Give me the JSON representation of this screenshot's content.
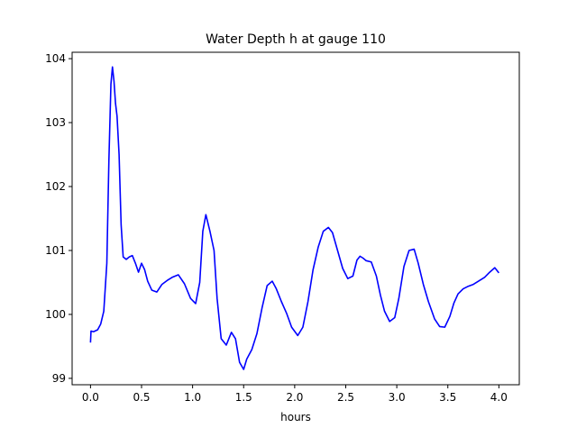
{
  "chart_data": {
    "type": "line",
    "title": "Water Depth h at gauge 110",
    "xlabel": "hours",
    "ylabel": "",
    "xlim": [
      -0.18,
      4.2
    ],
    "ylim": [
      98.9,
      104.1
    ],
    "xticks": [
      0.0,
      0.5,
      1.0,
      1.5,
      2.0,
      2.5,
      3.0,
      3.5,
      4.0
    ],
    "xtick_labels": [
      "0.0",
      "0.5",
      "1.0",
      "1.5",
      "2.0",
      "2.5",
      "3.0",
      "3.5",
      "4.0"
    ],
    "yticks": [
      99,
      100,
      101,
      102,
      103,
      104
    ],
    "ytick_labels": [
      "99",
      "100",
      "101",
      "102",
      "103",
      "104"
    ],
    "grid": false,
    "series": [
      {
        "color": "#0000ff",
        "x": [
          0.0,
          0.005,
          0.03,
          0.07,
          0.1,
          0.13,
          0.16,
          0.18,
          0.2,
          0.215,
          0.23,
          0.245,
          0.26,
          0.28,
          0.3,
          0.32,
          0.35,
          0.38,
          0.41,
          0.44,
          0.47,
          0.5,
          0.53,
          0.56,
          0.6,
          0.65,
          0.7,
          0.75,
          0.8,
          0.86,
          0.92,
          0.98,
          1.03,
          1.07,
          1.1,
          1.13,
          1.17,
          1.21,
          1.24,
          1.28,
          1.33,
          1.38,
          1.42,
          1.46,
          1.5,
          1.53,
          1.58,
          1.63,
          1.68,
          1.73,
          1.78,
          1.82,
          1.87,
          1.92,
          1.97,
          2.03,
          2.08,
          2.13,
          2.18,
          2.23,
          2.28,
          2.33,
          2.37,
          2.42,
          2.47,
          2.52,
          2.57,
          2.61,
          2.64,
          2.67,
          2.7,
          2.75,
          2.8,
          2.84,
          2.88,
          2.93,
          2.98,
          3.02,
          3.07,
          3.12,
          3.17,
          3.21,
          3.26,
          3.31,
          3.37,
          3.42,
          3.47,
          3.52,
          3.56,
          3.6,
          3.65,
          3.7,
          3.75,
          3.8,
          3.86,
          3.91,
          3.96,
          4.0
        ],
        "y": [
          99.56,
          99.74,
          99.73,
          99.76,
          99.85,
          100.05,
          100.8,
          102.4,
          103.6,
          103.87,
          103.65,
          103.3,
          103.1,
          102.5,
          101.4,
          100.9,
          100.86,
          100.9,
          100.92,
          100.8,
          100.66,
          100.8,
          100.7,
          100.52,
          100.38,
          100.35,
          100.47,
          100.53,
          100.58,
          100.62,
          100.48,
          100.25,
          100.17,
          100.5,
          101.3,
          101.56,
          101.3,
          101.0,
          100.25,
          99.62,
          99.52,
          99.72,
          99.62,
          99.25,
          99.14,
          99.3,
          99.45,
          99.7,
          100.1,
          100.45,
          100.52,
          100.4,
          100.2,
          100.02,
          99.8,
          99.67,
          99.8,
          100.2,
          100.7,
          101.05,
          101.3,
          101.36,
          101.28,
          101.0,
          100.72,
          100.56,
          100.6,
          100.85,
          100.91,
          100.88,
          100.84,
          100.82,
          100.6,
          100.3,
          100.05,
          99.89,
          99.95,
          100.25,
          100.75,
          101.0,
          101.02,
          100.8,
          100.47,
          100.2,
          99.93,
          99.81,
          99.8,
          99.97,
          100.18,
          100.32,
          100.4,
          100.44,
          100.47,
          100.52,
          100.58,
          100.66,
          100.73,
          100.65
        ]
      }
    ]
  }
}
